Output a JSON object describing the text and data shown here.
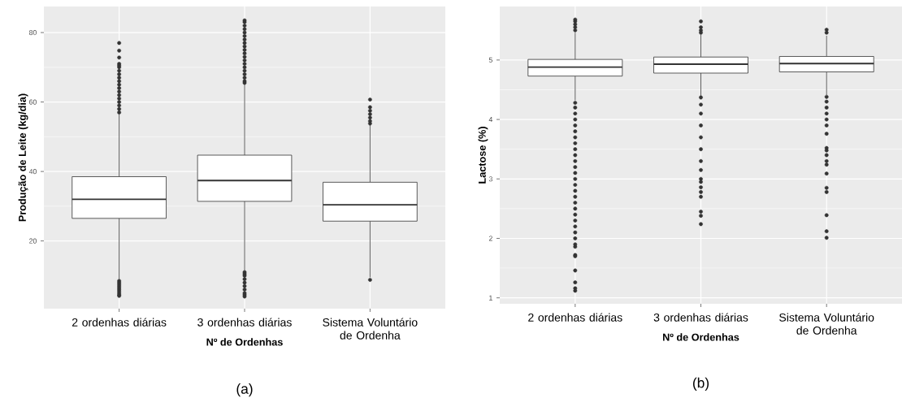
{
  "chart_data": [
    {
      "type": "box",
      "categories": [
        "2 ordenhas diárias",
        "3 ordenhas diárias",
        "Sistema Voluntário de Ordenha"
      ],
      "xlabel": "Nº de Ordenhas",
      "ylabel": "Produção de Leite (kg/dia)",
      "ylim": [
        0.5,
        87.5
      ],
      "yticks": [
        20,
        40,
        60,
        80
      ],
      "grid": true,
      "marker": "circle",
      "color": "#333333",
      "annotations": [
        "(a)"
      ],
      "boxes": [
        {
          "low": 9,
          "q1": 26.5,
          "median": 32,
          "q3": 38.5,
          "high": 56.5,
          "outliers": [
            57,
            58,
            59,
            60,
            61,
            62,
            63,
            64,
            65,
            66,
            67,
            68,
            69,
            70,
            70.5,
            71,
            72.8,
            74.8,
            77,
            8.5,
            8,
            7.5,
            7,
            6.5,
            6,
            5.5,
            5,
            4.5,
            4.2
          ]
        },
        {
          "low": 11.5,
          "q1": 31.4,
          "median": 37.4,
          "q3": 44.7,
          "high": 65,
          "outliers": [
            65.5,
            66,
            67,
            68,
            69,
            70,
            71,
            72,
            73,
            74,
            75,
            76,
            77,
            78,
            79,
            80,
            81,
            82,
            83,
            83.5,
            11,
            10.5,
            10,
            9,
            8,
            7,
            6,
            5,
            4.5,
            4
          ]
        },
        {
          "low": 9.5,
          "q1": 25.7,
          "median": 30.4,
          "q3": 36.9,
          "high": 53.4,
          "outliers": [
            53.8,
            54.5,
            55.5,
            56.5,
            57.5,
            58.5,
            60.7,
            8.8
          ]
        }
      ]
    },
    {
      "type": "box",
      "categories": [
        "2 ordenhas diárias",
        "3 ordenhas diárias",
        "Sistema Voluntário de Ordenha"
      ],
      "xlabel": "Nº de Ordenhas",
      "ylabel": "Lactose (%)",
      "ylim": [
        0.9,
        5.9
      ],
      "yticks": [
        1,
        2,
        3,
        4,
        5
      ],
      "grid": true,
      "marker": "circle",
      "color": "#333333",
      "annotations": [
        "(b)"
      ],
      "boxes": [
        {
          "low": 4.32,
          "q1": 4.73,
          "median": 4.88,
          "q3": 5.01,
          "high": 5.46,
          "outliers": [
            5.5,
            5.55,
            5.6,
            5.65,
            5.68,
            4.28,
            4.2,
            4.1,
            4.0,
            3.9,
            3.8,
            3.7,
            3.6,
            3.5,
            3.4,
            3.3,
            3.2,
            3.1,
            3.0,
            2.9,
            2.8,
            2.7,
            2.6,
            2.5,
            2.4,
            2.3,
            2.2,
            2.1,
            2.0,
            1.9,
            1.86,
            1.72,
            1.7,
            1.46,
            1.26,
            1.16,
            1.12
          ]
        },
        {
          "low": 4.39,
          "q1": 4.78,
          "median": 4.93,
          "q3": 5.05,
          "high": 5.43,
          "outliers": [
            5.46,
            5.5,
            5.55,
            5.65,
            4.37,
            4.25,
            4.1,
            3.9,
            3.7,
            3.5,
            3.3,
            3.15,
            3.0,
            2.95,
            2.86,
            2.78,
            2.7,
            2.45,
            2.38,
            2.24
          ]
        },
        {
          "low": 4.41,
          "q1": 4.8,
          "median": 4.94,
          "q3": 5.06,
          "high": 5.41,
          "outliers": [
            5.46,
            5.51,
            4.38,
            4.3,
            4.2,
            4.1,
            4.0,
            3.9,
            3.76,
            3.52,
            3.48,
            3.4,
            3.3,
            3.24,
            3.09,
            2.85,
            2.78,
            2.39,
            2.12,
            2.01
          ]
        }
      ]
    }
  ]
}
